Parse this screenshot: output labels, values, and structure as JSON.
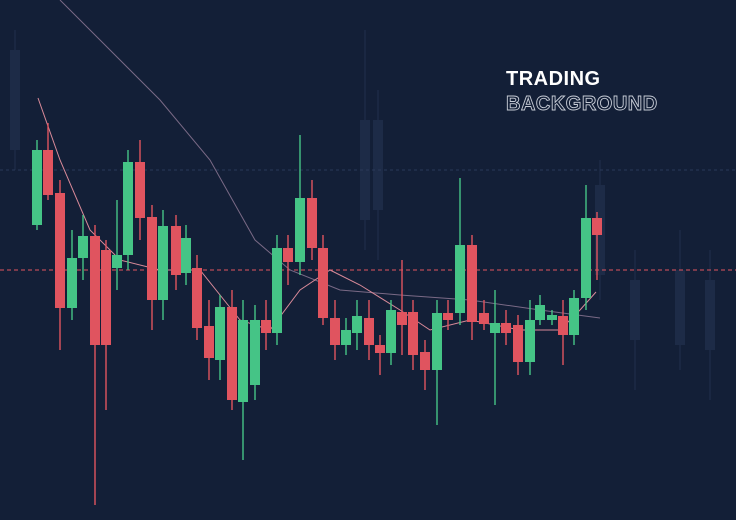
{
  "title": {
    "line1": "TRADING",
    "line2": "BACKGROUND"
  }
}
